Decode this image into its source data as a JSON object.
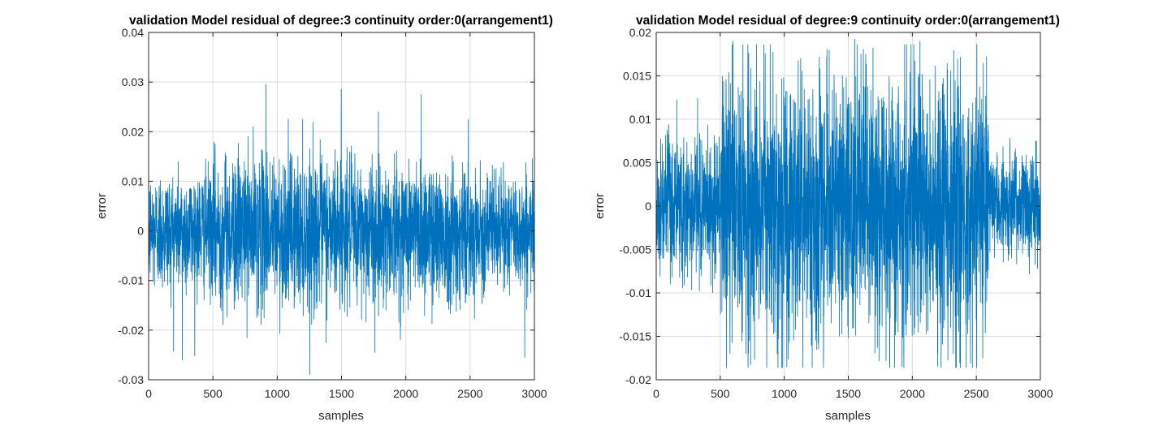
{
  "chart_data": [
    {
      "type": "line",
      "title": "validation Model residual of degree:3 continuity order:0(arrangement1)",
      "xlabel": "samples",
      "ylabel": "error",
      "xlim": [
        0,
        3000
      ],
      "ylim": [
        -0.03,
        0.04
      ],
      "xticks": [
        0,
        500,
        1000,
        1500,
        2000,
        2500,
        3000
      ],
      "xtick_labels": [
        "0",
        "500",
        "1000",
        "1500",
        "2000",
        "2500",
        "3000"
      ],
      "yticks": [
        -0.03,
        -0.02,
        -0.01,
        0,
        0.01,
        0.02,
        0.03,
        0.04
      ],
      "ytick_labels": [
        "-0.03",
        "-0.02",
        "-0.01",
        "0",
        "0.01",
        "0.02",
        "0.03",
        "0.04"
      ],
      "grid": true,
      "series_color": "#0072BD",
      "n_samples": 3000,
      "noise_std_segments": [
        {
          "from": 0,
          "to": 500,
          "std": 0.006
        },
        {
          "from": 500,
          "to": 1500,
          "std": 0.0075
        },
        {
          "from": 1500,
          "to": 2500,
          "std": 0.007
        },
        {
          "from": 2500,
          "to": 3000,
          "std": 0.0055
        }
      ],
      "peaks": [
        {
          "x": 912,
          "y": 0.0295
        },
        {
          "x": 1498,
          "y": 0.0285
        },
        {
          "x": 2120,
          "y": 0.0275
        },
        {
          "x": 262,
          "y": -0.026
        },
        {
          "x": 2925,
          "y": -0.0255
        },
        {
          "x": 1760,
          "y": -0.0245
        }
      ]
    },
    {
      "type": "line",
      "title": "validation Model residual of degree:9 continuity order:0(arrangement1)",
      "xlabel": "samples",
      "ylabel": "error",
      "xlim": [
        0,
        3000
      ],
      "ylim": [
        -0.02,
        0.02
      ],
      "xticks": [
        0,
        500,
        1000,
        1500,
        2000,
        2500,
        3000
      ],
      "xtick_labels": [
        "0",
        "500",
        "1000",
        "1500",
        "2000",
        "2500",
        "3000"
      ],
      "yticks": [
        -0.02,
        -0.015,
        -0.01,
        -0.005,
        0,
        0.005,
        0.01,
        0.015,
        0.02
      ],
      "ytick_labels": [
        "-0.02",
        "-0.015",
        "-0.01",
        "-0.005",
        "0",
        "0.005",
        "0.01",
        "0.015",
        "0.02"
      ],
      "grid": true,
      "series_color": "#0072BD",
      "n_samples": 3000,
      "noise_std_segments": [
        {
          "from": 0,
          "to": 500,
          "std": 0.004
        },
        {
          "from": 500,
          "to": 2600,
          "std": 0.0075
        },
        {
          "from": 2600,
          "to": 3000,
          "std": 0.003
        }
      ],
      "peaks": [
        {
          "x": 600,
          "y": 0.019
        },
        {
          "x": 1550,
          "y": 0.0192
        },
        {
          "x": 2060,
          "y": 0.019
        },
        {
          "x": 1020,
          "y": -0.0185
        },
        {
          "x": 1920,
          "y": -0.0185
        },
        {
          "x": 2550,
          "y": -0.0175
        }
      ]
    }
  ]
}
